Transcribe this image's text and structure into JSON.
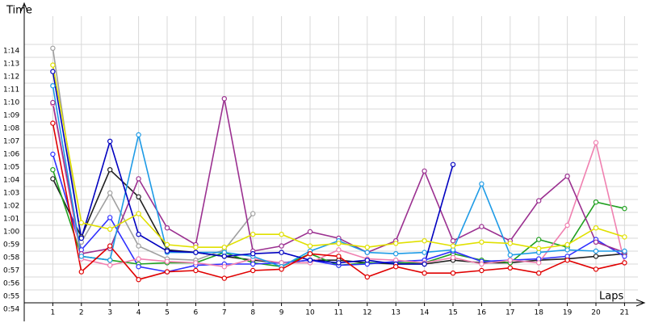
{
  "chart_data": {
    "type": "line",
    "y_label": "Time",
    "x_label": "Laps",
    "x": [
      1,
      2,
      3,
      4,
      5,
      6,
      7,
      8,
      9,
      10,
      11,
      12,
      13,
      14,
      15,
      16,
      17,
      18,
      19,
      20,
      21
    ],
    "xlim": [
      0,
      21
    ],
    "xticks": [
      1,
      2,
      3,
      4,
      5,
      6,
      7,
      8,
      9,
      10,
      11,
      12,
      13,
      14,
      15,
      16,
      17,
      18,
      19,
      20,
      21
    ],
    "ylim": [
      54,
      76
    ],
    "yticks": [
      {
        "value": 54,
        "label": "0:54"
      },
      {
        "value": 55,
        "label": "0:55"
      },
      {
        "value": 56,
        "label": "0:56"
      },
      {
        "value": 57,
        "label": "0:57"
      },
      {
        "value": 58,
        "label": "0:58"
      },
      {
        "value": 59,
        "label": "0:59"
      },
      {
        "value": 60,
        "label": "1:00"
      },
      {
        "value": 61,
        "label": "1:01"
      },
      {
        "value": 62,
        "label": "1:02"
      },
      {
        "value": 63,
        "label": "1:03"
      },
      {
        "value": 64,
        "label": "1:04"
      },
      {
        "value": 65,
        "label": "1:05"
      },
      {
        "value": 66,
        "label": "1:06"
      },
      {
        "value": 67,
        "label": "1:07"
      },
      {
        "value": 68,
        "label": "1:08"
      },
      {
        "value": 69,
        "label": "1:09"
      },
      {
        "value": 70,
        "label": "1:10"
      },
      {
        "value": 71,
        "label": "1:11"
      },
      {
        "value": 72,
        "label": "1:12"
      },
      {
        "value": 73,
        "label": "1:13"
      },
      {
        "value": 74,
        "label": "1:14"
      }
    ],
    "grid": true,
    "series": [
      {
        "color": "#a0a0a0",
        "values": [
          73.7,
          58.7,
          62.5,
          58.4,
          57.4,
          57.3,
          58.1,
          60.9,
          null,
          null,
          null,
          null,
          null,
          null,
          null,
          null,
          null,
          null,
          null,
          null,
          null
        ]
      },
      {
        "color": "#202020",
        "values": [
          63.6,
          59.1,
          64.3,
          62.2,
          58.1,
          57.9,
          57.6,
          57.3,
          57.1,
          57.3,
          57.3,
          57.1,
          57.0,
          57.0,
          57.3,
          57.1,
          57.1,
          57.3,
          57.4,
          57.6,
          57.8
        ]
      },
      {
        "color": "#20a020",
        "values": [
          64.3,
          57.6,
          57.3,
          57.0,
          57.1,
          57.1,
          57.9,
          57.1,
          56.8,
          57.8,
          56.9,
          57.1,
          57.1,
          57.1,
          57.8,
          57.3,
          57.1,
          58.9,
          58.3,
          61.8,
          61.3
        ]
      },
      {
        "color": "#3030ff",
        "values": [
          65.5,
          58.1,
          60.6,
          56.8,
          56.4,
          56.9,
          57.0,
          57.0,
          57.1,
          57.3,
          56.9,
          57.0,
          57.2,
          57.3,
          58.0,
          57.2,
          57.3,
          57.4,
          57.6,
          58.9,
          57.6
        ]
      },
      {
        "color": "#f080b0",
        "values": [
          69.4,
          57.4,
          56.9,
          57.4,
          57.2,
          57.1,
          56.8,
          57.4,
          57.1,
          57.1,
          58.1,
          57.4,
          57.3,
          57.1,
          57.5,
          57.0,
          57.3,
          57.1,
          60.0,
          66.4,
          57.1
        ]
      },
      {
        "color": "#9b3090",
        "values": [
          69.5,
          57.8,
          58.2,
          63.6,
          59.8,
          58.5,
          69.8,
          58.0,
          58.4,
          59.5,
          59.0,
          57.9,
          58.8,
          64.2,
          58.8,
          59.9,
          58.8,
          61.9,
          63.8,
          58.7,
          57.9
        ]
      },
      {
        "color": "#1e9be6",
        "values": [
          70.8,
          57.6,
          57.3,
          67.0,
          57.9,
          57.9,
          57.9,
          57.6,
          56.8,
          58.0,
          58.8,
          57.9,
          57.8,
          57.9,
          58.1,
          63.2,
          57.7,
          57.9,
          58.1,
          58.0,
          58.0
        ]
      },
      {
        "color": "#0000c0",
        "values": [
          71.9,
          59.0,
          66.5,
          59.3,
          58.0,
          57.9,
          57.6,
          57.8,
          57.9,
          57.3,
          57.1,
          57.3,
          57.0,
          57.0,
          64.7,
          null,
          null,
          null,
          null,
          null,
          null
        ]
      },
      {
        "color": "#e0e000",
        "values": [
          72.4,
          60.2,
          59.7,
          60.9,
          58.5,
          58.3,
          58.3,
          59.3,
          59.3,
          58.4,
          58.6,
          58.3,
          58.6,
          58.8,
          58.4,
          58.7,
          58.6,
          58.2,
          58.5,
          59.8,
          59.1
        ]
      },
      {
        "color": "#e00000",
        "values": [
          67.9,
          56.4,
          58.4,
          55.8,
          56.4,
          56.5,
          55.9,
          56.5,
          56.6,
          57.8,
          57.6,
          56.0,
          56.8,
          56.3,
          56.3,
          56.5,
          56.7,
          56.3,
          57.3,
          56.6,
          57.1
        ]
      }
    ]
  }
}
